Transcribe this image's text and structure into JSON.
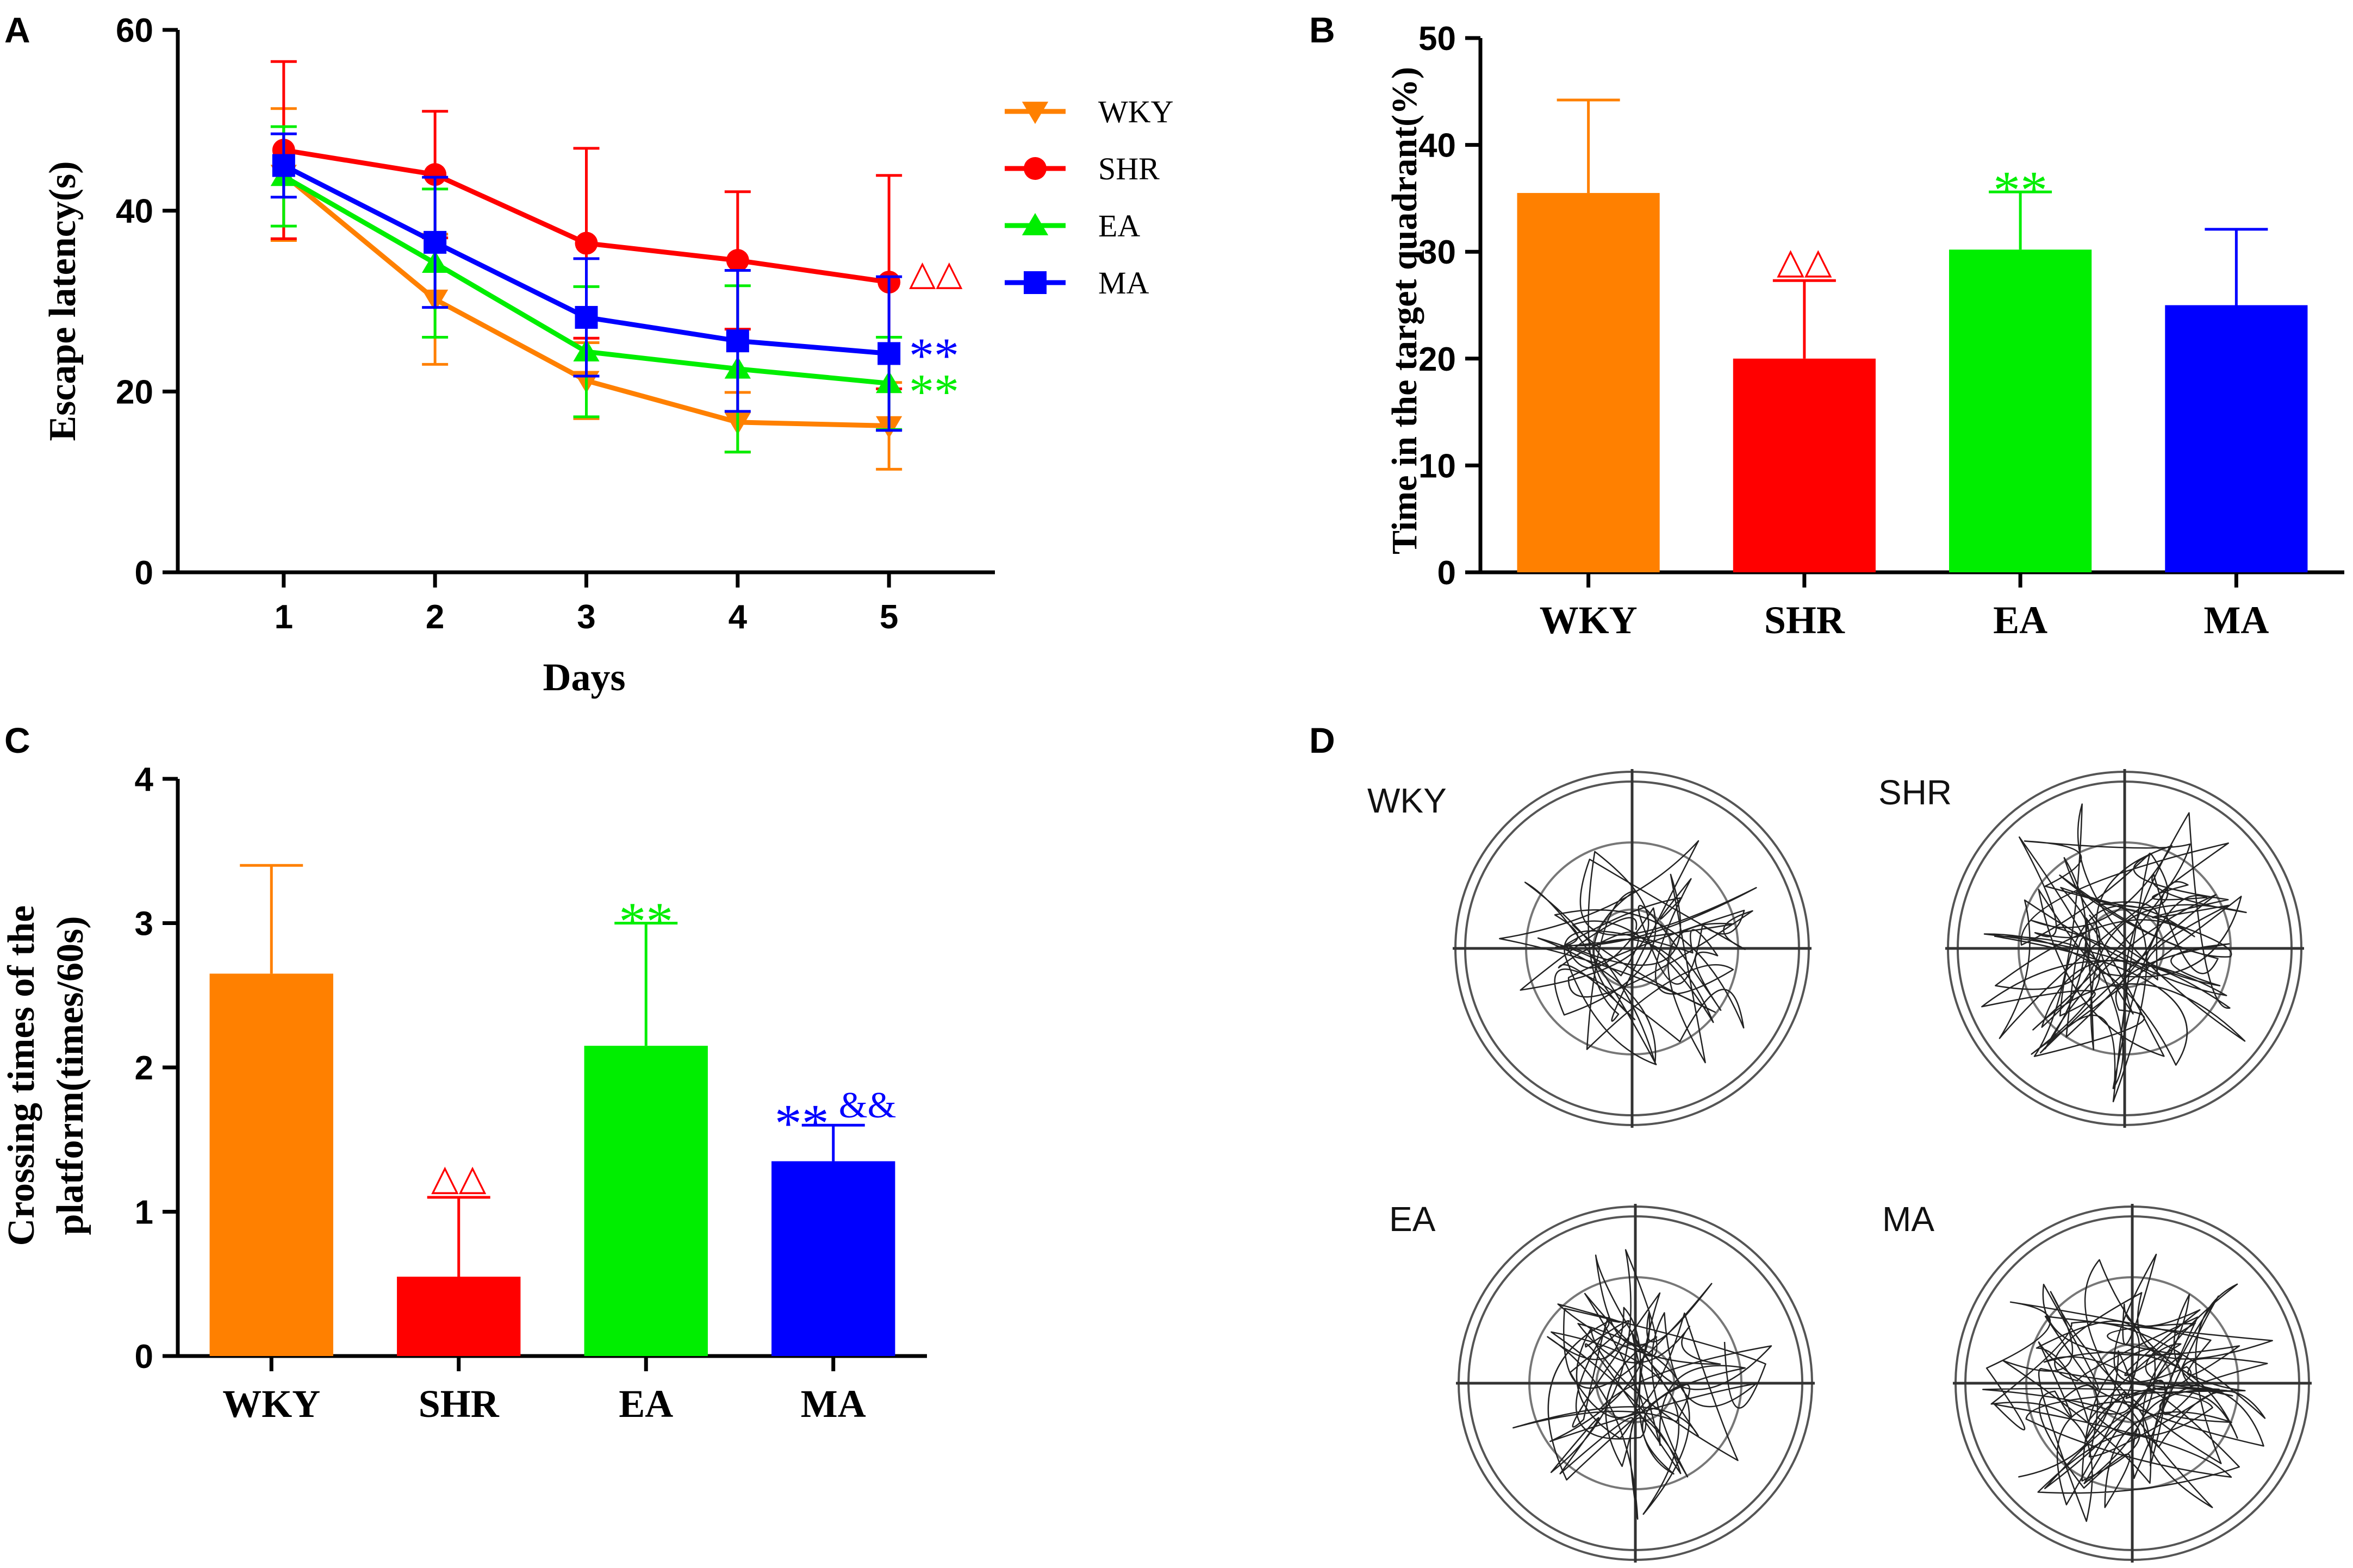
{
  "figure": {
    "panel_letters": [
      "A",
      "B",
      "C",
      "D"
    ],
    "colors": {
      "WKY": "#ff8000",
      "SHR": "#ff0000",
      "EA": "#00ee00",
      "MA": "#0000ff",
      "axis": "#000000"
    }
  },
  "chart_data": [
    {
      "panel": "A",
      "type": "line",
      "xlabel": "Days",
      "ylabel": "Escape latency(s)",
      "x": [
        1,
        2,
        3,
        4,
        5
      ],
      "xlim": [
        0.3,
        5.7
      ],
      "ylim": [
        0,
        60
      ],
      "yticks": [
        0,
        20,
        40,
        60
      ],
      "grid": false,
      "legend_position": "top-right",
      "series": [
        {
          "name": "WKY",
          "marker": "triangle-down",
          "color": "#ff8000",
          "values": [
            44,
            30.2,
            21.2,
            16.6,
            16.2
          ],
          "errors": [
            7.3,
            7.2,
            4.2,
            3.3,
            4.8
          ]
        },
        {
          "name": "SHR",
          "marker": "circle",
          "color": "#ff0000",
          "values": [
            46.7,
            44,
            36.4,
            34.5,
            32.1
          ],
          "errors": [
            9.8,
            7,
            10.5,
            7.6,
            11.8
          ]
        },
        {
          "name": "EA",
          "marker": "triangle-up",
          "color": "#00ee00",
          "values": [
            43.8,
            34.2,
            24.4,
            22.5,
            20.9
          ],
          "errors": [
            5.5,
            8.2,
            7.2,
            9.2,
            5.1
          ]
        },
        {
          "name": "MA",
          "marker": "square",
          "color": "#0000ff",
          "values": [
            45,
            36.5,
            28.2,
            25.6,
            24.2
          ],
          "errors": [
            3.5,
            7.2,
            6.5,
            7.8,
            8.5
          ]
        }
      ],
      "annotations": [
        {
          "text": "△△",
          "color": "#ff0000",
          "day": 5,
          "y": 33
        },
        {
          "text": "**",
          "color": "#0000ff",
          "day": 5,
          "y": 24.4
        },
        {
          "text": "**",
          "color": "#00ee00",
          "day": 5,
          "y": 20.4
        }
      ]
    },
    {
      "panel": "B",
      "type": "bar",
      "ylabel": "Time in the target quadrant(%)",
      "categories": [
        "WKY",
        "SHR",
        "EA",
        "MA"
      ],
      "values": [
        35.5,
        20,
        30.2,
        25
      ],
      "errors": [
        8.7,
        7.3,
        5.4,
        7.1
      ],
      "colors": [
        "#ff8000",
        "#ff0000",
        "#00ee00",
        "#0000ff"
      ],
      "ylim": [
        0,
        50
      ],
      "yticks": [
        0,
        10,
        20,
        30,
        40,
        50
      ],
      "annotations": [
        {
          "bar": 1,
          "text": "△△",
          "color": "#ff0000"
        },
        {
          "bar": 2,
          "text": "**",
          "color": "#00ee00"
        }
      ]
    },
    {
      "panel": "C",
      "type": "bar",
      "ylabel_lines": [
        "Crossing times of the",
        "platform(times/60s)"
      ],
      "categories": [
        "WKY",
        "SHR",
        "EA",
        "MA"
      ],
      "values": [
        2.65,
        0.55,
        2.15,
        1.35
      ],
      "errors": [
        0.75,
        0.55,
        0.85,
        0.25
      ],
      "colors": [
        "#ff8000",
        "#ff0000",
        "#00ee00",
        "#0000ff"
      ],
      "ylim": [
        0,
        4
      ],
      "yticks": [
        0,
        1,
        2,
        3,
        4
      ],
      "annotations": [
        {
          "bar": 1,
          "text": "△△",
          "color": "#ff0000"
        },
        {
          "bar": 2,
          "text": "**",
          "color": "#00ee00"
        },
        {
          "bar": 3,
          "text": "**",
          "color": "#0000ff"
        },
        {
          "bar": 3,
          "text": "&&",
          "color": "#0000ff"
        }
      ]
    }
  ],
  "panel_d": {
    "tracks": [
      {
        "label": "WKY",
        "seed": 11,
        "spread": 0.52,
        "loops": 44
      },
      {
        "label": "SHR",
        "seed": 23,
        "spread": 0.62,
        "loops": 60
      },
      {
        "label": "EA",
        "seed": 37,
        "spread": 0.55,
        "loops": 46
      },
      {
        "label": "MA",
        "seed": 53,
        "spread": 0.6,
        "loops": 70
      }
    ]
  }
}
